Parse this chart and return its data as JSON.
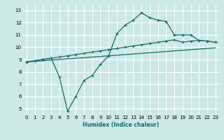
{
  "xlabel": "Humidex (Indice chaleur)",
  "ylabel": "",
  "xlim": [
    -0.5,
    23.5
  ],
  "ylim": [
    4.5,
    13.5
  ],
  "xticks": [
    0,
    1,
    2,
    3,
    4,
    5,
    6,
    7,
    8,
    9,
    10,
    11,
    12,
    13,
    14,
    15,
    16,
    17,
    18,
    19,
    20,
    21,
    22,
    23
  ],
  "yticks": [
    5,
    6,
    7,
    8,
    9,
    10,
    11,
    12,
    13
  ],
  "bg_color": "#cde8e8",
  "line_color": "#1a6b6b",
  "grid_color": "#ffffff",
  "line1_x": [
    0,
    1,
    2,
    3,
    4,
    5,
    6,
    7,
    8,
    9,
    10,
    11,
    12,
    13,
    14,
    15,
    16,
    17,
    18,
    19,
    20,
    21,
    22,
    23
  ],
  "line1_y": [
    8.8,
    8.85,
    8.9,
    8.95,
    9.0,
    9.05,
    9.1,
    9.15,
    9.2,
    9.25,
    9.3,
    9.35,
    9.4,
    9.45,
    9.5,
    9.55,
    9.6,
    9.65,
    9.7,
    9.75,
    9.8,
    9.85,
    9.9,
    9.95
  ],
  "line2_x": [
    0,
    1,
    2,
    3,
    4,
    5,
    6,
    7,
    8,
    9,
    10,
    11,
    12,
    13,
    14,
    15,
    16,
    17,
    18,
    19,
    20,
    21,
    22,
    23
  ],
  "line2_y": [
    8.8,
    8.9,
    9.0,
    9.1,
    9.2,
    9.3,
    9.4,
    9.5,
    9.6,
    9.7,
    9.8,
    9.9,
    10.0,
    10.1,
    10.2,
    10.3,
    10.4,
    10.5,
    10.6,
    10.4,
    10.5,
    10.55,
    10.5,
    10.4
  ],
  "line3_x": [
    0,
    1,
    2,
    3,
    4,
    5,
    6,
    7,
    8,
    9,
    10,
    11,
    12,
    13,
    14,
    15,
    16,
    17,
    18,
    19,
    20,
    21,
    22,
    23
  ],
  "line3_y": [
    8.8,
    8.9,
    9.0,
    9.1,
    7.6,
    4.8,
    6.0,
    7.3,
    7.7,
    8.6,
    9.3,
    11.1,
    11.8,
    12.2,
    12.8,
    12.4,
    12.2,
    12.1,
    11.0,
    11.0,
    11.0,
    10.55,
    10.5,
    10.4
  ]
}
